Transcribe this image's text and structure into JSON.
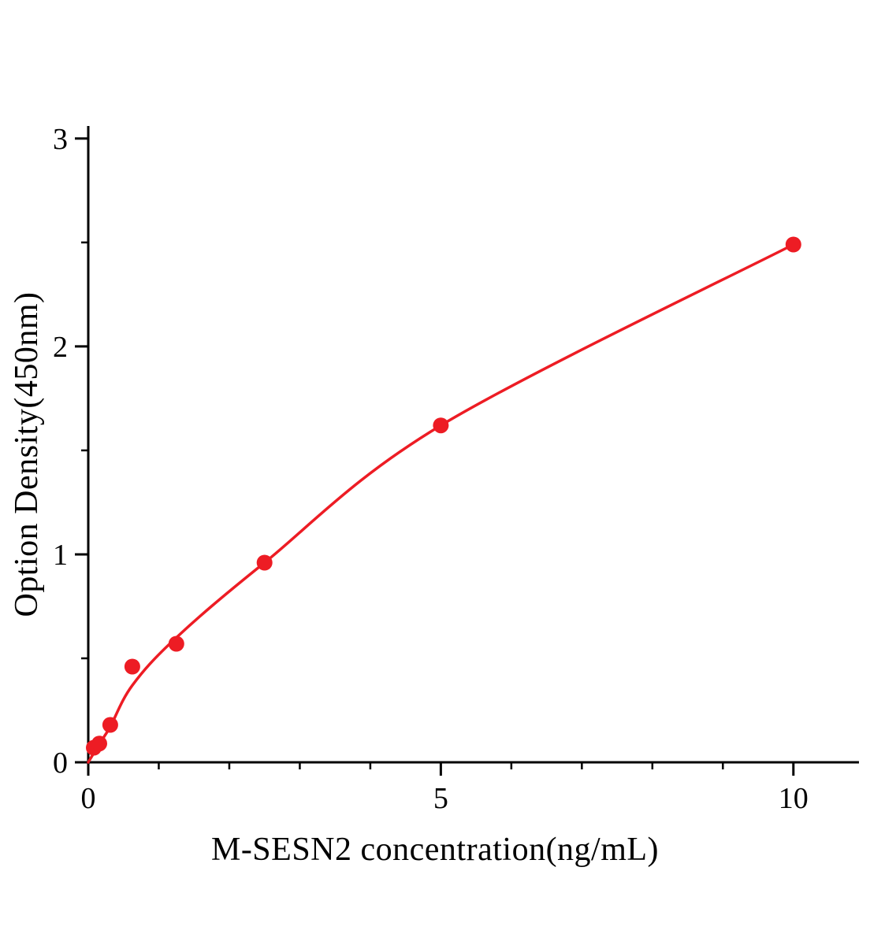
{
  "chart_data": {
    "type": "scatter",
    "title": "",
    "xlabel": "M-SESN2 concentration(ng/mL)",
    "ylabel": "Option Density(450nm)",
    "x": [
      0.078,
      0.156,
      0.312,
      0.625,
      1.25,
      2.5,
      5,
      10
    ],
    "y": [
      0.07,
      0.09,
      0.18,
      0.46,
      0.57,
      0.96,
      1.62,
      2.49
    ],
    "fit_curve_points": [
      [
        0,
        0.0
      ],
      [
        0.16,
        0.09
      ],
      [
        0.31,
        0.17
      ],
      [
        0.625,
        0.37
      ],
      [
        1.25,
        0.6
      ],
      [
        2.5,
        0.96
      ],
      [
        5,
        1.62
      ],
      [
        10,
        2.49
      ]
    ],
    "xlim": [
      0,
      10.93
    ],
    "ylim": [
      0,
      3.06
    ],
    "x_major_ticks": [
      0,
      5,
      10
    ],
    "x_minor_ticks": [
      1,
      2,
      3,
      4,
      6,
      7,
      8,
      9
    ],
    "y_major_ticks": [
      0,
      1,
      2,
      3
    ],
    "y_minor_ticks": [
      0.5,
      1.5,
      2.5
    ],
    "grid": false,
    "legend": null,
    "point_color": "#ed1c24",
    "line_color": "#ed1c24",
    "axis_color": "#000000",
    "tick_label_color": "#000000"
  }
}
